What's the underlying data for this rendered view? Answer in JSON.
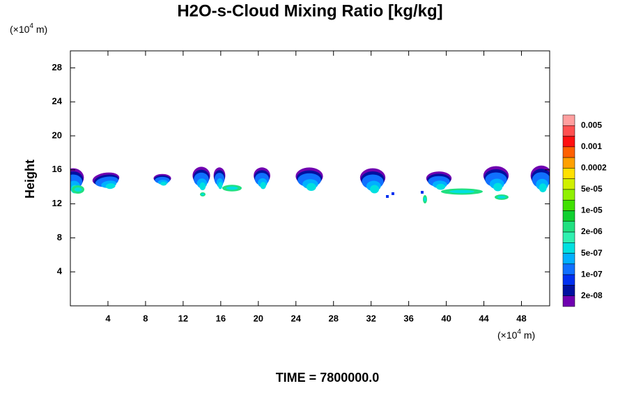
{
  "chart_data": {
    "type": "field",
    "title": "H2O-s-Cloud Mixing Ratio [kg/kg]",
    "y_label": "Height",
    "unit_label": {
      "base": "(×10",
      "exp": "4",
      "rest": " m)"
    },
    "time_label": "TIME = 7800000.0",
    "xlim": [
      0,
      51
    ],
    "xticks": [
      4,
      8,
      12,
      16,
      20,
      24,
      28,
      32,
      36,
      40,
      44,
      48
    ],
    "ylim": [
      0,
      30
    ],
    "yticks": [
      4,
      8,
      12,
      16,
      20,
      24,
      28
    ],
    "colorbar": {
      "colors": [
        "#ff9f9f",
        "#ff5050",
        "#ff1010",
        "#ff6000",
        "#ffa000",
        "#ffe000",
        "#d0f000",
        "#90f000",
        "#40e000",
        "#10d030",
        "#20e080",
        "#30f0b0",
        "#00e0e0",
        "#00b0ff",
        "#1070ff",
        "#0030f0",
        "#0010a0",
        "#7000b0"
      ],
      "labels": [
        {
          "value": 0.005,
          "label": "0.005"
        },
        {
          "value": 0.001,
          "label": "0.001"
        },
        {
          "value": 0.0002,
          "label": "0.0002"
        },
        {
          "value": 5e-05,
          "label": "5e-05"
        },
        {
          "value": 1e-05,
          "label": "1e-05"
        },
        {
          "value": 2e-06,
          "label": "2e-06"
        },
        {
          "value": 5e-07,
          "label": "5e-07"
        },
        {
          "value": 1e-07,
          "label": "1e-07"
        },
        {
          "value": 2e-08,
          "label": "2e-08"
        }
      ]
    }
  }
}
